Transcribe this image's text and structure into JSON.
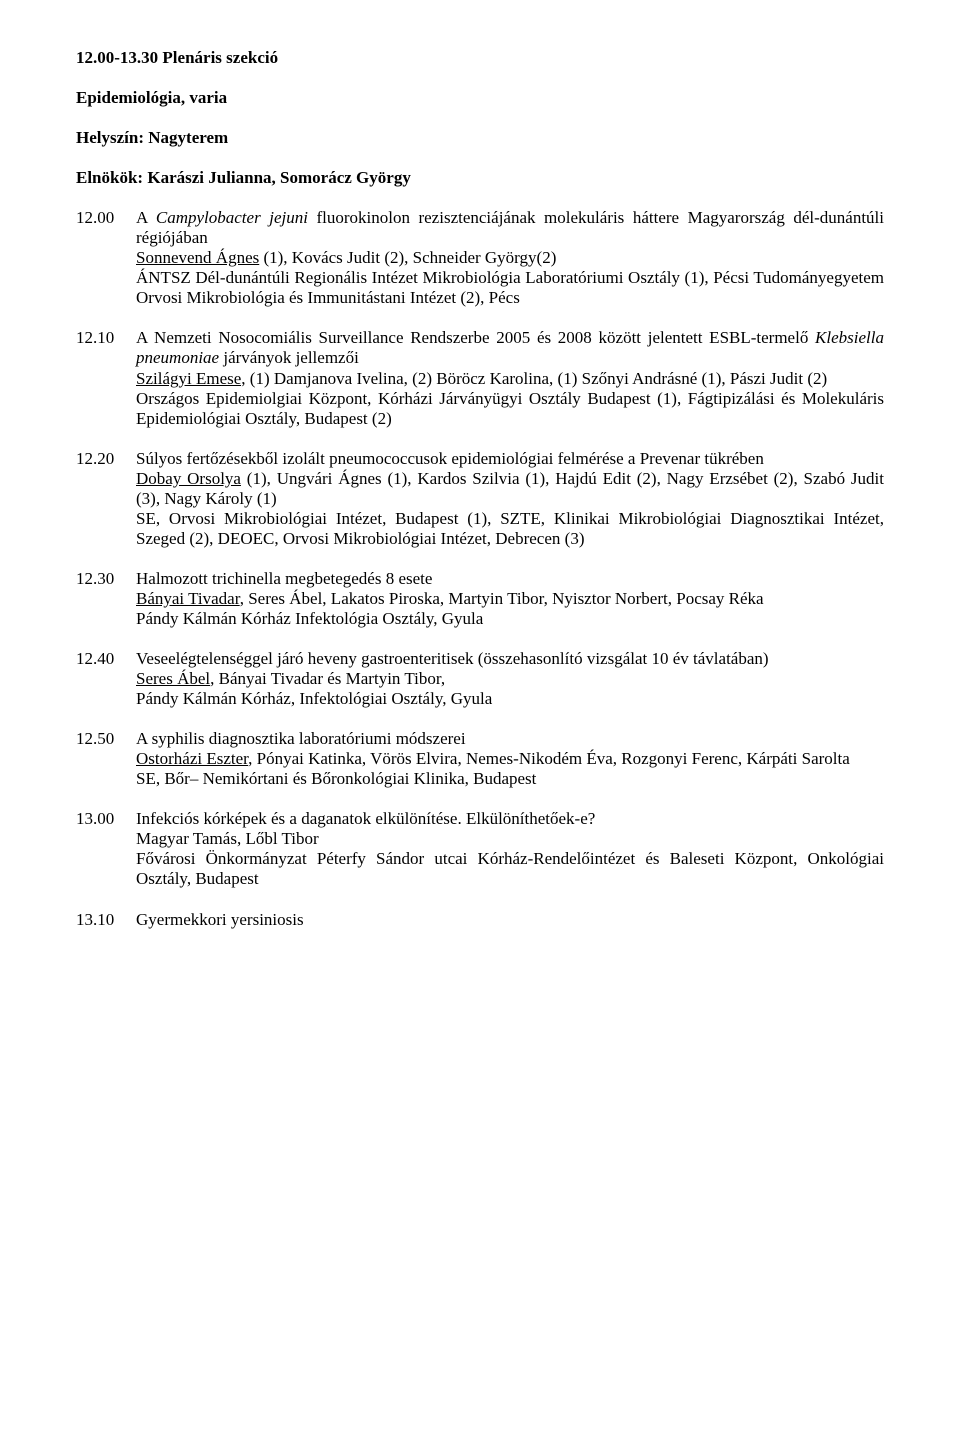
{
  "session": {
    "time_range": "12.00-13.30",
    "title_suffix": "Plenáris szekció",
    "topic": "Epidemiológia, varia",
    "location_label": "Helyszín:",
    "location": "Nagyterem",
    "chairs_label": "Elnökök:",
    "chairs": "Karászi Julianna, Somorácz György"
  },
  "entries": [
    {
      "time": "12.00",
      "title_prefix": "A ",
      "title_italic": "Campylobacter jejuni",
      "title_suffix": " fluorokinolon rezisztenciájának molekuláris háttere Magyarország dél-dunántúli régiójában",
      "authors_underlined": "Sonnevend Ágnes",
      "authors_rest": " (1), Kovács Judit (2), Schneider György(2)",
      "affiliation": "ÁNTSZ Dél-dunántúli Regionális Intézet Mikrobiológia Laboratóriumi Osztály (1), Pécsi Tudományegyetem Orvosi Mikrobiológia és Immunitástani Intézet (2), Pécs"
    },
    {
      "time": "12.10",
      "title_prefix": "A Nemzeti Nosocomiális Surveillance Rendszerbe 2005 és 2008 között jelentett ESBL-termelő ",
      "title_italic": "Klebsiella pneumoniae",
      "title_suffix": " járványok jellemzői",
      "authors_underlined": "Szilágyi Emese,",
      "authors_rest": " (1) Damjanova Ivelina, (2) Böröcz Karolina, (1) Szőnyi Andrásné (1), Pászi Judit (2)",
      "affiliation": "Országos Epidemiolgiai Központ, Kórházi Járványügyi Osztály Budapest (1), Fágtipizálási és Molekuláris Epidemiológiai Osztály, Budapest (2)"
    },
    {
      "time": "12.20",
      "title_prefix": "Súlyos fertőzésekből izolált pneumococcusok epidemiológiai felmérése a Prevenar tükrében",
      "title_italic": "",
      "title_suffix": "",
      "authors_underlined": "Dobay Orsolya",
      "authors_rest": " (1), Ungvári Ágnes (1), Kardos Szilvia (1), Hajdú Edit (2), Nagy Erzsébet (2), Szabó Judit (3), Nagy Károly (1)",
      "affiliation": "SE, Orvosi Mikrobiológiai Intézet, Budapest (1), SZTE, Klinikai Mikrobiológiai Diagnosztikai Intézet, Szeged (2), DEOEC, Orvosi Mikrobiológiai Intézet, Debrecen (3)"
    },
    {
      "time": "12.30",
      "title_prefix": "Halmozott trichinella megbetegedés 8 esete",
      "title_italic": "",
      "title_suffix": "",
      "authors_underlined": "Bányai Tivadar",
      "authors_rest": ", Seres Ábel, Lakatos Piroska, Martyin Tibor, Nyisztor Norbert, Pocsay Réka",
      "affiliation": "Pándy Kálmán Kórház Infektológia Osztály, Gyula"
    },
    {
      "time": "12.40",
      "title_prefix": "Veseelégtelenséggel járó heveny gastroenteritisek (összehasonlító vizsgálat 10 év távlatában)",
      "title_italic": "",
      "title_suffix": "",
      "authors_underlined": "Seres Ábel",
      "authors_rest": ", Bányai Tivadar és Martyin Tibor,",
      "affiliation": "Pándy Kálmán Kórház, Infektológiai Osztály, Gyula"
    },
    {
      "time": "12.50",
      "title_prefix": "A syphilis diagnosztika laboratóriumi módszerei",
      "title_italic": "",
      "title_suffix": "",
      "authors_underlined": "Ostorházi Eszter",
      "authors_rest": ", Pónyai Katinka, Vörös Elvira, Nemes-Nikodém Éva, Rozgonyi Ferenc, Kárpáti Sarolta",
      "affiliation": "SE, Bőr– Nemikórtani és Bőronkológiai Klinika, Budapest"
    },
    {
      "time": "13.00",
      "title_prefix": "Infekciós kórképek és a daganatok elkülönítése. Elkülöníthetőek-e?",
      "title_italic": "",
      "title_suffix": "",
      "authors_underlined": "",
      "authors_rest": "Magyar Tamás, Lőbl Tibor",
      "affiliation": "Fővárosi Önkormányzat Péterfy Sándor utcai Kórház-Rendelőintézet és Baleseti Központ, Onkológiai Osztály, Budapest"
    },
    {
      "time": "13.10",
      "title_prefix": "Gyermekkori yersiniosis",
      "title_italic": "",
      "title_suffix": "",
      "authors_underlined": "",
      "authors_rest": "",
      "affiliation": ""
    }
  ]
}
